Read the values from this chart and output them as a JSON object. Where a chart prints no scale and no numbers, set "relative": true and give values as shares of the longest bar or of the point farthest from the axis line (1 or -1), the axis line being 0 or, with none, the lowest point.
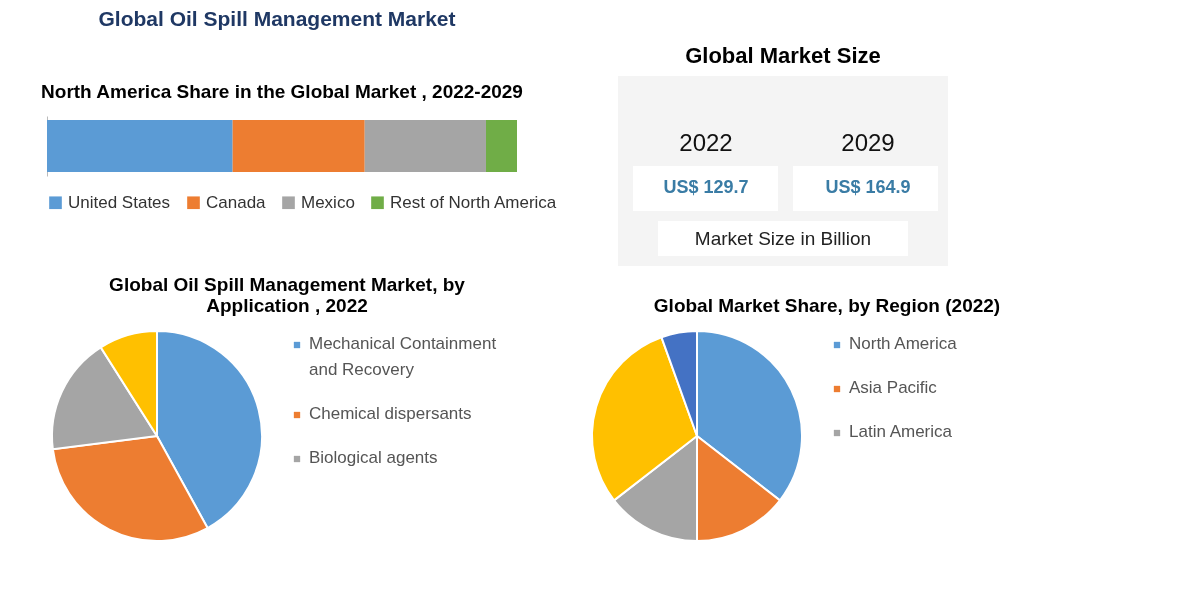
{
  "chart_data": [
    {
      "type": "other",
      "title": "Global Oil Spill Management Market"
    },
    {
      "type": "bar",
      "title": "North America Share in the Global Market , 2022-2029",
      "categories": [
        null
      ],
      "orientation": "horizontal",
      "stacked": true,
      "relative": true,
      "legend": "bottom",
      "series": [
        {
          "name": "United States",
          "color": "#5b9bd5",
          "values": [
            0.395
          ]
        },
        {
          "name": "Canada",
          "color": "#ed7d31",
          "values": [
            0.281
          ]
        },
        {
          "name": "Mexico",
          "color": "#a5a5a5",
          "values": [
            0.258
          ]
        },
        {
          "name": "Rest of North America",
          "color": "#70ad47",
          "values": [
            0.066
          ]
        }
      ]
    },
    {
      "type": "other",
      "title": "Global Market Size",
      "annotations": [
        "2022",
        "2029",
        "US$ 129.7",
        "US$ 164.9",
        "Market Size in Billion"
      ]
    },
    {
      "type": "pie",
      "title": "Global Oil Spill Management Market,  by Application , 2022",
      "legend": "right",
      "categories": [
        "Mechanical Containment and Recovery",
        "Chemical dispersants",
        "Biological agents",
        null
      ],
      "values": [
        42,
        31,
        18,
        9
      ],
      "colors": [
        "#5b9bd5",
        "#ed7d31",
        "#a5a5a5",
        "#ffc000"
      ]
    },
    {
      "type": "pie",
      "title": "Global Market Share, by Region (2022)",
      "legend": "right",
      "categories": [
        "North America",
        "Asia Pacific",
        "Latin America",
        null,
        null
      ],
      "values": [
        35.5,
        14.5,
        14.5,
        30,
        5.5
      ],
      "colors": [
        "#5b9bd5",
        "#ed7d31",
        "#a5a5a5",
        "#ffc000",
        "#4472c4"
      ]
    }
  ]
}
